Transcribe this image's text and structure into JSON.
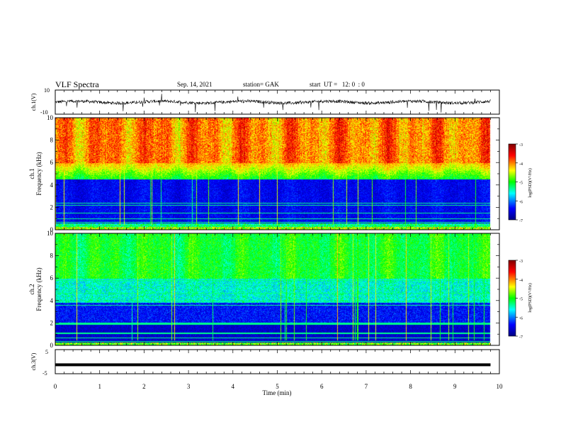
{
  "header": {
    "title": "VLF Spectra",
    "date": "Sep. 14, 2021",
    "station": "station= GAK",
    "start": "start  UT =   12: 0  : 0"
  },
  "chart_data": [
    {
      "type": "line",
      "name": "ch1-waveform",
      "ylabel": "ch.1(V)",
      "ylim": [
        -10,
        10
      ],
      "yticks": [
        "10",
        "-10"
      ],
      "xlim": [
        0,
        10
      ],
      "baseline": 0,
      "samples": 1200
    },
    {
      "type": "heatmap",
      "name": "ch1-spectrogram",
      "ylabel_line1": "ch.1",
      "ylabel_line2": "Frequency  (kHz)",
      "ylim": [
        0,
        10
      ],
      "yticks": [
        0,
        2,
        4,
        6,
        8,
        10
      ],
      "xlim": [
        0,
        9.8
      ],
      "colorbar": {
        "label": "log(PSD)(V²/Hz)",
        "range": [
          -7,
          -3
        ],
        "ticks": [
          -3,
          -4,
          -5,
          -6,
          -7
        ],
        "colors": [
          "#000080",
          "#0000ff",
          "#00ffff",
          "#00ff00",
          "#ffff00",
          "#ff0000",
          "#7f0000"
        ]
      }
    },
    {
      "type": "heatmap",
      "name": "ch2-spectrogram",
      "ylabel_line1": "ch.2",
      "ylabel_line2": "Frequency  (kHz)",
      "ylim": [
        0,
        10
      ],
      "yticks": [
        0,
        2,
        4,
        6,
        8,
        10
      ],
      "xlim": [
        0,
        9.8
      ],
      "colorbar": {
        "label": "log(PSD)(V²/Hz)",
        "range": [
          -7,
          -3
        ],
        "ticks": [
          -3,
          -4,
          -5,
          -6,
          -7
        ],
        "colors": [
          "#000080",
          "#0000ff",
          "#00ffff",
          "#00ff00",
          "#ffff00",
          "#ff0000",
          "#7f0000"
        ]
      }
    },
    {
      "type": "line",
      "name": "ch3-waveform",
      "ylabel": "ch.3(V)",
      "ylim": [
        -5,
        5
      ],
      "yticks": [
        "5",
        "-5"
      ],
      "xlim": [
        0,
        10
      ],
      "constant_value": -1.3
    }
  ],
  "xaxis": {
    "label": "Time  (min)",
    "ticks": [
      "0",
      "1",
      "2",
      "3",
      "4",
      "5",
      "6",
      "7",
      "8",
      "9",
      "10"
    ]
  }
}
